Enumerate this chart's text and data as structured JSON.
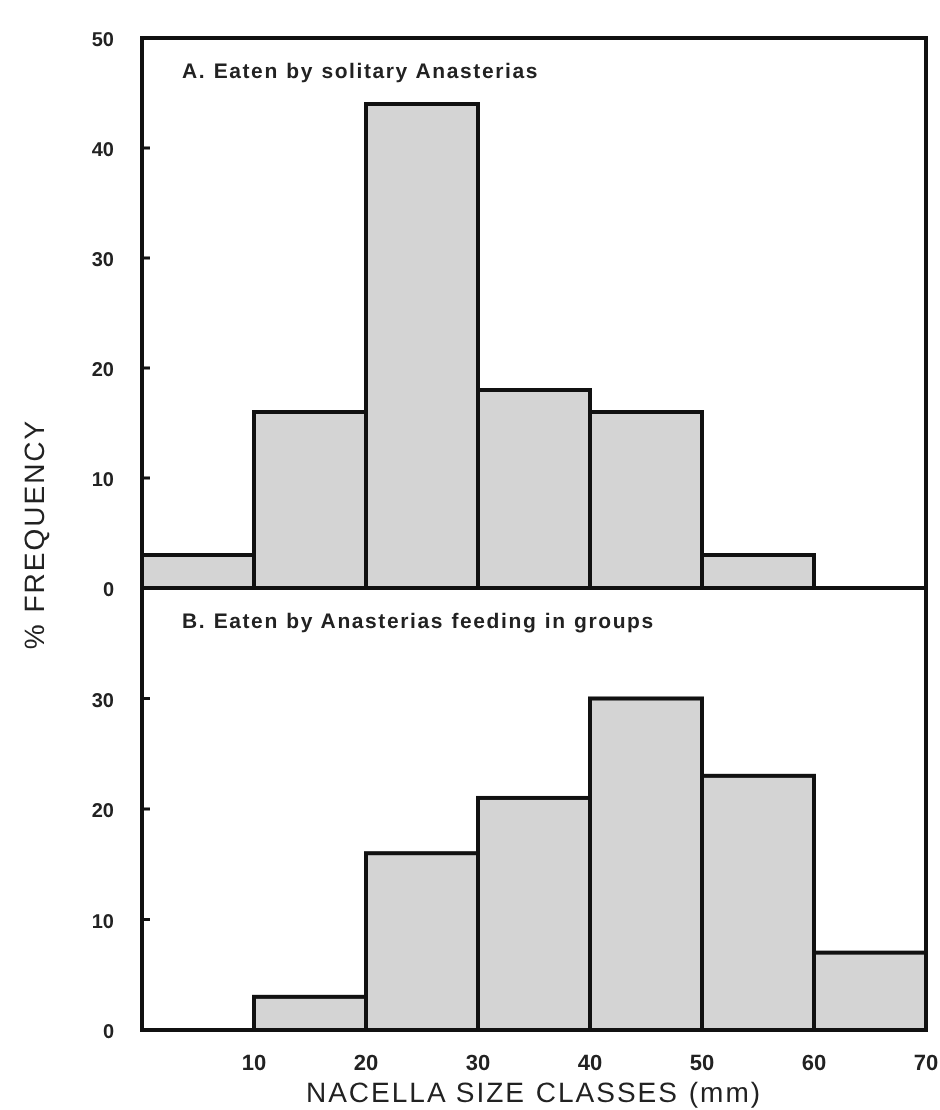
{
  "chart_data": [
    {
      "type": "histogram",
      "title": "A. Eaten by solitary Anasterias",
      "ylabel": "% FREQUENCY",
      "bins": [
        0,
        10,
        20,
        30,
        40,
        50,
        60
      ],
      "values": [
        3,
        16,
        44,
        18,
        16,
        3
      ],
      "color": "#d4d4d4",
      "xlim": [
        0,
        70
      ],
      "xticks": [
        {
          "value": 10,
          "label": null
        },
        {
          "value": 20,
          "label": null
        },
        {
          "value": 30,
          "label": null
        },
        {
          "value": 40,
          "label": null
        },
        {
          "value": 50,
          "label": null
        },
        {
          "value": 60,
          "label": null
        },
        {
          "value": 70,
          "label": null
        }
      ],
      "ylim": [
        0,
        50
      ],
      "yticks": [
        0,
        10,
        20,
        30,
        40,
        50
      ],
      "tick_labels": "y"
    },
    {
      "type": "histogram",
      "title": "B. Eaten by Anasterias feeding in groups",
      "xlabel": "NACELLA SIZE CLASSES (mm)",
      "bins": [
        10,
        20,
        30,
        40,
        50,
        60,
        70
      ],
      "values": [
        3,
        16,
        21,
        30,
        23,
        7
      ],
      "color": "#d4d4d4",
      "xlim": [
        0,
        70
      ],
      "xticks": [
        10,
        20,
        30,
        40,
        50,
        60,
        70
      ],
      "ylim": [
        0,
        40
      ],
      "yticks": [
        0,
        10,
        20,
        30
      ]
    }
  ]
}
